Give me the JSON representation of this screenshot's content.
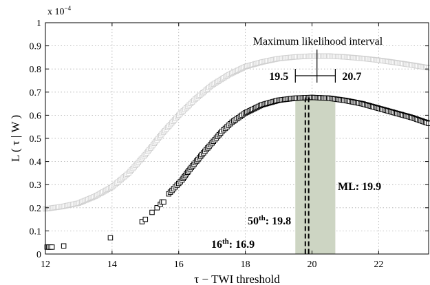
{
  "chart_data": {
    "type": "scatter",
    "xlabel": "τ − TWI threshold",
    "ylabel": "L ( τ | W )",
    "y_multiplier": "x 10",
    "y_multiplier_exp": "−4",
    "xlim": [
      12,
      23.5
    ],
    "ylim": [
      0,
      1
    ],
    "x_ticks": [
      "12",
      "14",
      "16",
      "18",
      "20",
      "22"
    ],
    "y_ticks": [
      "0",
      "0.1",
      "0.2",
      "0.3",
      "0.4",
      "0.5",
      "0.6",
      "0.7",
      "0.8",
      "0.9",
      "1"
    ],
    "grid": true,
    "ml_interval": [
      19.5,
      20.7
    ],
    "ml_value": 19.9,
    "percentile_50": 19.8,
    "percentile_16": 16.9,
    "series": [
      {
        "color": "#d0d0d0",
        "marker": "square",
        "points": [
          [
            12.0,
            0.195
          ],
          [
            12.5,
            0.205
          ],
          [
            13.0,
            0.22
          ],
          [
            13.5,
            0.25
          ],
          [
            14.0,
            0.29
          ],
          [
            14.5,
            0.35
          ],
          [
            15.0,
            0.43
          ],
          [
            15.5,
            0.52
          ],
          [
            16.0,
            0.6
          ],
          [
            16.5,
            0.67
          ],
          [
            17.0,
            0.73
          ],
          [
            17.5,
            0.775
          ],
          [
            18.0,
            0.81
          ],
          [
            18.5,
            0.83
          ],
          [
            19.0,
            0.845
          ],
          [
            19.5,
            0.852
          ],
          [
            20.0,
            0.856
          ],
          [
            20.5,
            0.856
          ],
          [
            21.0,
            0.852
          ],
          [
            21.5,
            0.846
          ],
          [
            22.0,
            0.838
          ],
          [
            22.5,
            0.828
          ],
          [
            23.0,
            0.817
          ],
          [
            23.5,
            0.805
          ]
        ]
      },
      {
        "color": "#000000",
        "marker": "square",
        "points": [
          [
            12.05,
            0.03
          ],
          [
            12.1,
            0.03
          ],
          [
            12.15,
            0.03
          ],
          [
            12.2,
            0.03
          ],
          [
            12.55,
            0.035
          ],
          [
            13.95,
            0.07
          ],
          [
            14.9,
            0.14
          ],
          [
            15.0,
            0.15
          ],
          [
            15.2,
            0.18
          ],
          [
            15.35,
            0.2
          ],
          [
            15.45,
            0.215
          ],
          [
            15.5,
            0.225
          ],
          [
            15.55,
            0.225
          ],
          [
            15.7,
            0.26
          ],
          [
            15.8,
            0.275
          ],
          [
            15.9,
            0.29
          ],
          [
            16.0,
            0.305
          ],
          [
            16.1,
            0.32
          ],
          [
            16.2,
            0.34
          ],
          [
            16.3,
            0.36
          ],
          [
            16.5,
            0.395
          ],
          [
            16.7,
            0.43
          ],
          [
            17.0,
            0.48
          ],
          [
            17.3,
            0.53
          ],
          [
            17.6,
            0.57
          ],
          [
            18.0,
            0.61
          ],
          [
            18.5,
            0.645
          ],
          [
            19.0,
            0.665
          ],
          [
            19.5,
            0.674
          ],
          [
            20.0,
            0.677
          ],
          [
            20.5,
            0.674
          ],
          [
            21.0,
            0.664
          ],
          [
            21.5,
            0.65
          ],
          [
            22.0,
            0.63
          ],
          [
            22.5,
            0.61
          ],
          [
            23.0,
            0.59
          ],
          [
            23.5,
            0.565
          ]
        ]
      }
    ],
    "annotations": {
      "ml_interval_label": "Maximum likelihood interval",
      "interval_low": "19.5",
      "interval_high": "20.7",
      "ml_label": "ML: 19.9",
      "p50_prefix": "50",
      "p50_sup": "th",
      "p50_value": ": 19.8",
      "p16_prefix": "16",
      "p16_sup": "th",
      "p16_value": ": 16.9"
    },
    "colors": {
      "shade": "#cdd5c3",
      "gray_series": "#d0d0d0",
      "black_series": "#000000"
    }
  }
}
